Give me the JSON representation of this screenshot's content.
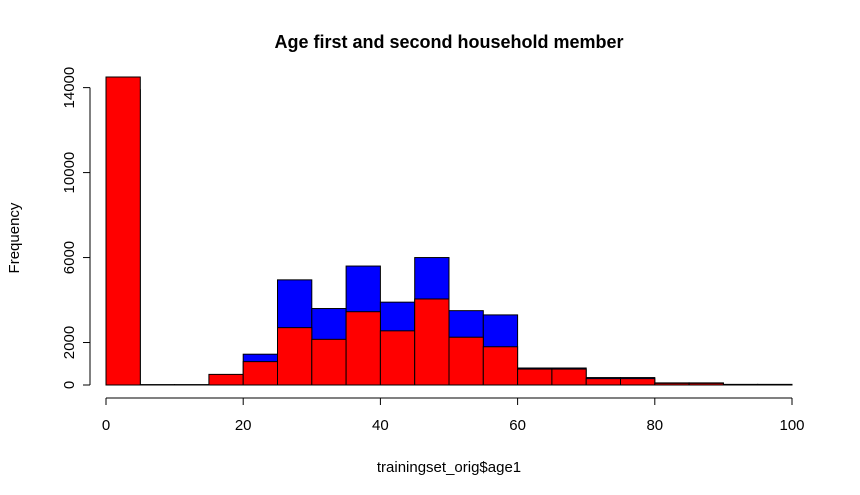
{
  "chart_data": {
    "type": "bar",
    "title": "Age first and second household member",
    "xlabel": "trainingset_orig$age1",
    "ylabel": "Frequency",
    "xlim": [
      0,
      100
    ],
    "ylim": [
      0,
      14500
    ],
    "x_ticks": [
      0,
      20,
      40,
      60,
      80,
      100
    ],
    "y_ticks": [
      0,
      2000,
      6000,
      10000,
      14000
    ],
    "bin_edges": [
      0,
      5,
      10,
      15,
      20,
      25,
      30,
      35,
      40,
      45,
      50,
      55,
      60,
      65,
      70,
      75,
      80,
      85,
      90,
      95,
      100
    ],
    "grid": false,
    "series": [
      {
        "color": "#0000ff",
        "values": [
          13900,
          0,
          0,
          0,
          1450,
          4950,
          3600,
          5600,
          3900,
          6000,
          3500,
          3300,
          800,
          800,
          350,
          350,
          100,
          100,
          30,
          30
        ]
      },
      {
        "color": "#ff0000",
        "values": [
          14500,
          20,
          20,
          500,
          1100,
          2700,
          2150,
          3450,
          2550,
          4050,
          2250,
          1800,
          750,
          750,
          300,
          300,
          80,
          80,
          20,
          20
        ]
      }
    ]
  }
}
